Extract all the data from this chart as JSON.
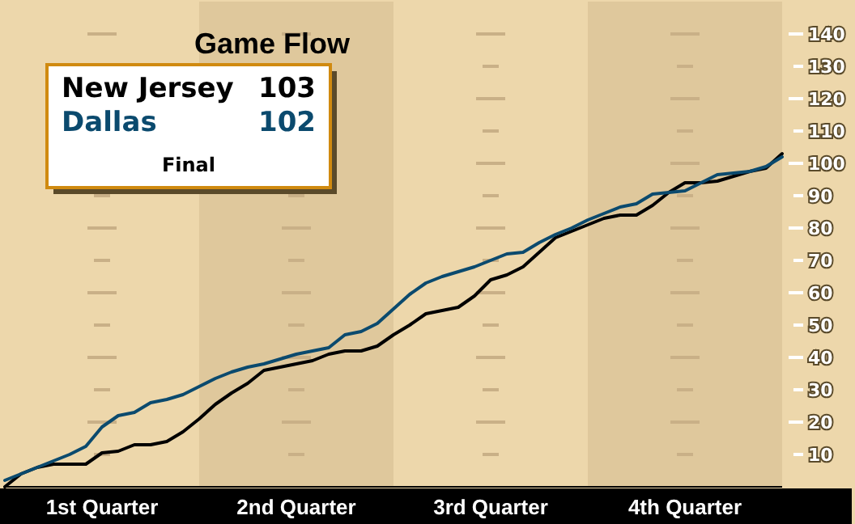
{
  "chart_data": {
    "type": "line",
    "title": "Game Flow",
    "categories": [
      null,
      null,
      null,
      null,
      null,
      null,
      "1st Quarter",
      null,
      null,
      null,
      null,
      null,
      null,
      null,
      null,
      null,
      null,
      null,
      "2nd Quarter",
      null,
      null,
      null,
      null,
      null,
      null,
      null,
      null,
      null,
      null,
      null,
      "3rd Quarter",
      null,
      null,
      null,
      null,
      null,
      null,
      null,
      null,
      null,
      null,
      null,
      "4th Quarter",
      null,
      null,
      null,
      null,
      null,
      null
    ],
    "ylim": [
      0,
      150
    ],
    "yticks": [
      10,
      20,
      30,
      40,
      50,
      60,
      70,
      80,
      90,
      100,
      110,
      120,
      130,
      140
    ],
    "grid": "y",
    "legend": "top left",
    "annotations": [
      "103",
      "102",
      "Final"
    ],
    "series": [
      {
        "name": "New Jersey",
        "color": "#000000",
        "values": [
          0,
          4,
          6,
          7,
          7,
          7,
          10.5,
          11,
          13,
          13,
          14,
          17,
          21,
          25.5,
          29,
          32,
          36,
          37,
          38,
          39,
          41,
          42,
          42,
          43.5,
          47,
          50,
          53.5,
          54.5,
          55.5,
          59,
          64,
          65.5,
          68,
          72.5,
          77,
          79,
          81,
          83,
          84,
          84,
          87,
          91,
          94,
          94,
          94.5,
          96,
          97.5,
          98.5,
          103
        ]
      },
      {
        "name": "Dallas",
        "color": "#0b4a6e",
        "values": [
          2,
          4,
          6,
          8,
          10,
          12.5,
          18.5,
          22,
          23,
          26,
          27,
          28.5,
          31,
          33.5,
          35.5,
          37,
          38,
          39.5,
          41,
          42,
          43,
          47,
          48,
          50.5,
          55,
          59.5,
          63,
          65,
          66.5,
          68,
          70,
          72,
          72.5,
          75.5,
          78,
          80,
          82.5,
          84.5,
          86.5,
          87.5,
          90.5,
          91,
          91.5,
          94,
          96.5,
          97,
          97.5,
          99,
          102
        ]
      }
    ]
  }
}
